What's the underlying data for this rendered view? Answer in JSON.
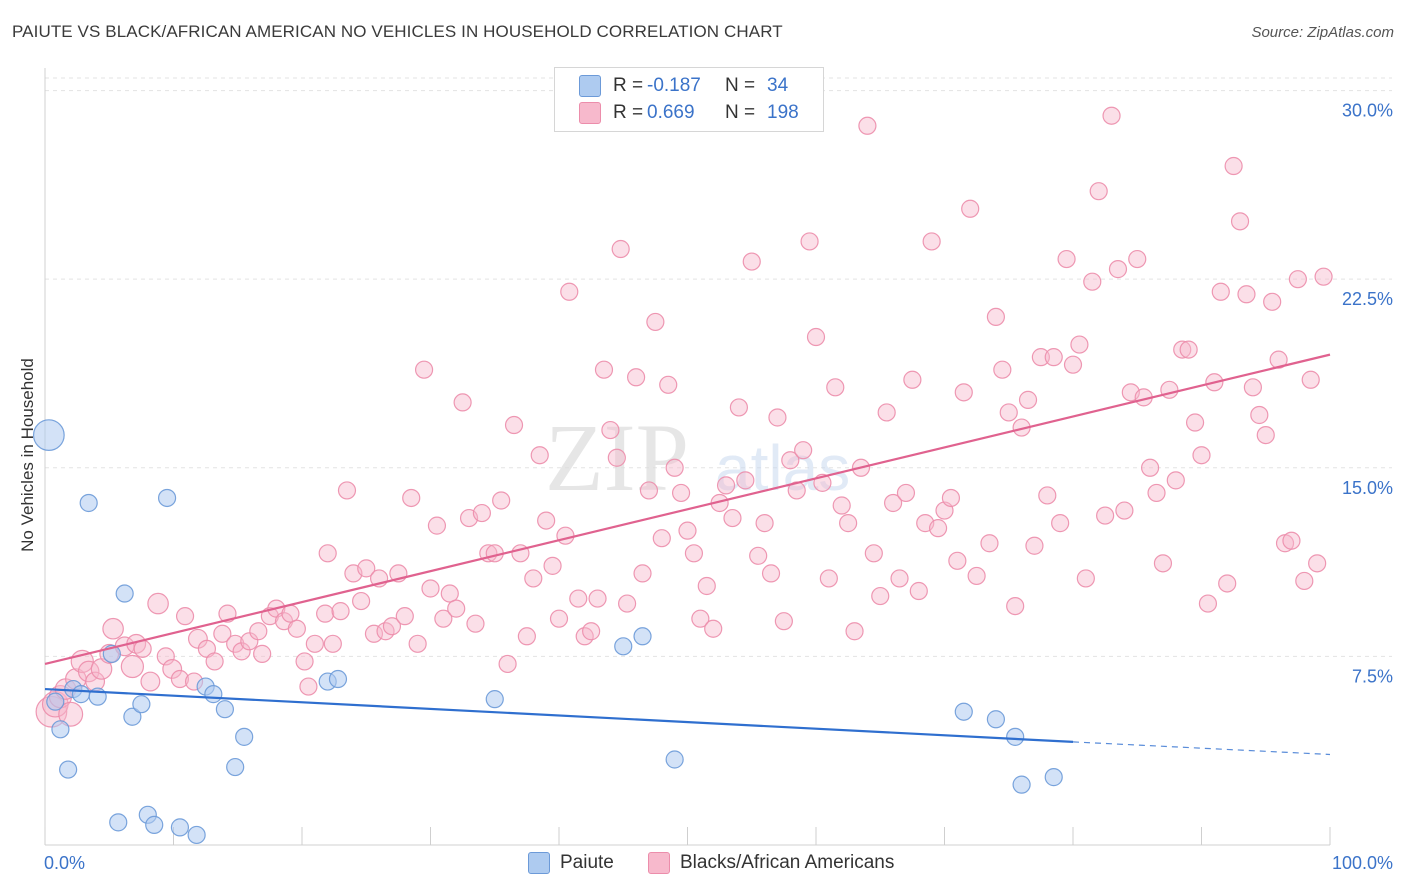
{
  "header": {
    "title": "PAIUTE VS BLACK/AFRICAN AMERICAN NO VEHICLES IN HOUSEHOLD CORRELATION CHART",
    "source": "Source: ZipAtlas.com"
  },
  "legend": {
    "rows": [
      {
        "r_label": "R =",
        "r_value": "-0.187",
        "n_label": "N =",
        "n_value": "34",
        "color": "#aecbf0"
      },
      {
        "r_label": "R =",
        "r_value": "0.669",
        "n_label": "N =",
        "n_value": "198",
        "color": "#f7b9cc"
      }
    ]
  },
  "watermark": {
    "zip": "ZIP",
    "atlas": "atlas"
  },
  "colors": {
    "blue": "#aecbf0",
    "blue_stroke": "#6c9ad8",
    "blue_line": "#2f6fcf",
    "pink": "#f7b9cc",
    "pink_stroke": "#ec8dab",
    "pink_line": "#e0628f",
    "axis_text": "#3b73c9",
    "grid": "#e3e3e3"
  },
  "chart_data": {
    "type": "scatter",
    "title": "PAIUTE VS BLACK/AFRICAN AMERICAN NO VEHICLES IN HOUSEHOLD CORRELATION CHART",
    "xlabel": "",
    "ylabel": "No Vehicles in Household",
    "xlim": [
      0,
      100
    ],
    "ylim": [
      0,
      30.5
    ],
    "x_tick_labels": [
      "0.0%",
      "100.0%"
    ],
    "y_ticks": [
      7.5,
      15.0,
      22.5,
      30.0
    ],
    "y_tick_labels": [
      "7.5%",
      "15.0%",
      "22.5%",
      "30.0%"
    ],
    "grid": true,
    "legend_position": "bottom",
    "series": [
      {
        "name": "Paiute",
        "r": -0.187,
        "n": 34,
        "trend": {
          "x0": 0,
          "y0": 6.2,
          "x1": 80,
          "y1": 4.1,
          "dash_x1": 100,
          "dash_y1": 3.6
        },
        "points": [
          [
            0.3,
            16.3,
            1.8
          ],
          [
            0.8,
            5.7,
            1
          ],
          [
            1.2,
            4.6,
            1
          ],
          [
            1.8,
            3.0,
            1
          ],
          [
            2.2,
            6.2,
            1
          ],
          [
            2.8,
            6.0,
            1
          ],
          [
            3.4,
            13.6,
            1
          ],
          [
            4.1,
            5.9,
            1
          ],
          [
            5.2,
            7.6,
            1
          ],
          [
            5.7,
            0.9,
            1
          ],
          [
            6.2,
            10.0,
            1
          ],
          [
            6.8,
            5.1,
            1
          ],
          [
            7.5,
            5.6,
            1
          ],
          [
            8.0,
            1.2,
            1
          ],
          [
            8.5,
            0.8,
            1
          ],
          [
            9.5,
            13.8,
            1
          ],
          [
            10.5,
            0.7,
            1
          ],
          [
            11.8,
            0.4,
            1
          ],
          [
            12.5,
            6.3,
            1
          ],
          [
            13.1,
            6.0,
            1
          ],
          [
            14.0,
            5.4,
            1
          ],
          [
            14.8,
            3.1,
            1
          ],
          [
            15.5,
            4.3,
            1
          ],
          [
            22.0,
            6.5,
            1
          ],
          [
            22.8,
            6.6,
            1
          ],
          [
            35.0,
            5.8,
            1
          ],
          [
            45.0,
            7.9,
            1
          ],
          [
            46.5,
            8.3,
            1
          ],
          [
            49.0,
            3.4,
            1
          ],
          [
            71.5,
            5.3,
            1
          ],
          [
            74.0,
            5.0,
            1
          ],
          [
            75.5,
            4.3,
            1
          ],
          [
            76.0,
            2.4,
            1
          ],
          [
            78.5,
            2.7,
            1
          ]
        ]
      },
      {
        "name": "Blacks/African Americans",
        "r": 0.669,
        "n": 198,
        "trend": {
          "x0": 0,
          "y0": 7.2,
          "x1": 100,
          "y1": 19.5
        },
        "points": [
          [
            0.5,
            5.3,
            1.8
          ],
          [
            0.8,
            5.6,
            1.5
          ],
          [
            1.2,
            5.9,
            1.3
          ],
          [
            1.6,
            6.2,
            1.2
          ],
          [
            2.0,
            5.2,
            1.4
          ],
          [
            2.4,
            6.6,
            1.2
          ],
          [
            2.9,
            7.3,
            1.3
          ],
          [
            3.4,
            6.9,
            1.2
          ],
          [
            3.9,
            6.5,
            1.1
          ],
          [
            4.4,
            7.0,
            1.2
          ],
          [
            5.0,
            7.6,
            1.1
          ],
          [
            5.3,
            8.6,
            1.2
          ],
          [
            6.2,
            7.9,
            1.1
          ],
          [
            6.8,
            7.1,
            1.3
          ],
          [
            7.1,
            8.0,
            1.1
          ],
          [
            7.6,
            7.8,
            1.0
          ],
          [
            8.2,
            6.5,
            1.1
          ],
          [
            8.8,
            9.6,
            1.2
          ],
          [
            9.4,
            7.5,
            1.0
          ],
          [
            9.9,
            7.0,
            1.1
          ],
          [
            10.5,
            6.6,
            1.0
          ],
          [
            10.9,
            9.1,
            1.0
          ],
          [
            11.6,
            6.5,
            1.0
          ],
          [
            11.9,
            8.2,
            1.1
          ],
          [
            12.6,
            7.8,
            1.0
          ],
          [
            13.2,
            7.3,
            1.0
          ],
          [
            13.8,
            8.4,
            1.0
          ],
          [
            14.2,
            9.2,
            1.0
          ],
          [
            14.8,
            8.0,
            1.0
          ],
          [
            15.3,
            7.7,
            1.0
          ],
          [
            15.9,
            8.1,
            1.0
          ],
          [
            16.6,
            8.5,
            1.0
          ],
          [
            16.9,
            7.6,
            1.0
          ],
          [
            17.5,
            9.1,
            1.0
          ],
          [
            18.0,
            9.4,
            1.0
          ],
          [
            18.6,
            8.9,
            1.0
          ],
          [
            19.1,
            9.2,
            1.0
          ],
          [
            19.6,
            8.6,
            1.0
          ],
          [
            20.2,
            7.3,
            1.0
          ],
          [
            20.5,
            6.3,
            1.0
          ],
          [
            21.0,
            8.0,
            1.0
          ],
          [
            21.8,
            9.2,
            1.0
          ],
          [
            22.4,
            8.0,
            1.0
          ],
          [
            22.0,
            11.6,
            1.0
          ],
          [
            23.0,
            9.3,
            1.0
          ],
          [
            23.5,
            14.1,
            1.0
          ],
          [
            24.0,
            10.8,
            1.0
          ],
          [
            24.6,
            9.7,
            1.0
          ],
          [
            25.0,
            11.0,
            1.0
          ],
          [
            25.6,
            8.4,
            1.0
          ],
          [
            26.0,
            10.6,
            1.0
          ],
          [
            26.5,
            8.5,
            1.0
          ],
          [
            27.0,
            8.7,
            1.0
          ],
          [
            27.5,
            10.8,
            1.0
          ],
          [
            28.0,
            9.1,
            1.0
          ],
          [
            28.5,
            13.8,
            1.0
          ],
          [
            29.0,
            8.0,
            1.0
          ],
          [
            29.5,
            18.9,
            1.0
          ],
          [
            30.0,
            10.2,
            1.0
          ],
          [
            30.5,
            12.7,
            1.0
          ],
          [
            31.0,
            9.0,
            1.0
          ],
          [
            31.5,
            10.0,
            1.0
          ],
          [
            32.0,
            9.4,
            1.0
          ],
          [
            32.5,
            17.6,
            1.0
          ],
          [
            33.0,
            13.0,
            1.0
          ],
          [
            33.5,
            8.8,
            1.0
          ],
          [
            34.0,
            13.2,
            1.0
          ],
          [
            34.5,
            11.6,
            1.0
          ],
          [
            35.0,
            11.6,
            1.0
          ],
          [
            35.5,
            13.7,
            1.0
          ],
          [
            36.0,
            7.2,
            1.0
          ],
          [
            36.5,
            16.7,
            1.0
          ],
          [
            37.0,
            11.6,
            1.0
          ],
          [
            37.5,
            8.3,
            1.0
          ],
          [
            38.0,
            10.6,
            1.0
          ],
          [
            38.5,
            15.5,
            1.0
          ],
          [
            39.0,
            12.9,
            1.0
          ],
          [
            39.5,
            11.1,
            1.0
          ],
          [
            40.0,
            9.0,
            1.0
          ],
          [
            40.5,
            12.3,
            1.0
          ],
          [
            40.8,
            22.0,
            1.0
          ],
          [
            41.5,
            9.8,
            1.0
          ],
          [
            42.0,
            8.3,
            1.0
          ],
          [
            42.5,
            8.5,
            1.0
          ],
          [
            43.0,
            9.8,
            1.0
          ],
          [
            43.5,
            18.9,
            1.0
          ],
          [
            44.0,
            16.5,
            1.0
          ],
          [
            44.5,
            15.4,
            1.0
          ],
          [
            44.8,
            23.7,
            1.0
          ],
          [
            45.3,
            9.6,
            1.0
          ],
          [
            46.0,
            18.6,
            1.0
          ],
          [
            46.5,
            10.8,
            1.0
          ],
          [
            47.0,
            14.1,
            1.0
          ],
          [
            47.5,
            20.8,
            1.0
          ],
          [
            48.0,
            12.2,
            1.0
          ],
          [
            48.5,
            18.3,
            1.0
          ],
          [
            49.0,
            15.0,
            1.0
          ],
          [
            49.5,
            14.0,
            1.0
          ],
          [
            50.0,
            12.5,
            1.0
          ],
          [
            50.5,
            11.6,
            1.0
          ],
          [
            51.0,
            9.0,
            1.0
          ],
          [
            51.5,
            10.3,
            1.0
          ],
          [
            52.0,
            8.6,
            1.0
          ],
          [
            52.5,
            13.6,
            1.0
          ],
          [
            53.0,
            14.3,
            1.0
          ],
          [
            53.5,
            13.0,
            1.0
          ],
          [
            54.0,
            17.4,
            1.0
          ],
          [
            54.5,
            14.5,
            1.0
          ],
          [
            55.0,
            23.2,
            1.0
          ],
          [
            55.5,
            11.5,
            1.0
          ],
          [
            56.0,
            12.8,
            1.0
          ],
          [
            56.5,
            10.8,
            1.0
          ],
          [
            57.0,
            17.0,
            1.0
          ],
          [
            57.5,
            8.9,
            1.0
          ],
          [
            58.0,
            15.3,
            1.0
          ],
          [
            58.5,
            14.1,
            1.0
          ],
          [
            59.0,
            15.7,
            1.0
          ],
          [
            59.5,
            24.0,
            1.0
          ],
          [
            60.0,
            20.2,
            1.0
          ],
          [
            60.5,
            14.4,
            1.0
          ],
          [
            61.0,
            10.6,
            1.0
          ],
          [
            61.5,
            18.2,
            1.0
          ],
          [
            62.0,
            13.5,
            1.0
          ],
          [
            62.5,
            12.8,
            1.0
          ],
          [
            63.0,
            8.5,
            1.0
          ],
          [
            63.5,
            15.0,
            1.0
          ],
          [
            64.0,
            28.6,
            1.0
          ],
          [
            64.5,
            11.6,
            1.0
          ],
          [
            65.0,
            9.9,
            1.0
          ],
          [
            65.5,
            17.2,
            1.0
          ],
          [
            66.0,
            13.6,
            1.0
          ],
          [
            66.5,
            10.6,
            1.0
          ],
          [
            67.0,
            14.0,
            1.0
          ],
          [
            67.5,
            18.5,
            1.0
          ],
          [
            68.0,
            10.1,
            1.0
          ],
          [
            68.5,
            12.8,
            1.0
          ],
          [
            69.0,
            24.0,
            1.0
          ],
          [
            69.5,
            12.6,
            1.0
          ],
          [
            70.0,
            13.3,
            1.0
          ],
          [
            70.5,
            13.8,
            1.0
          ],
          [
            71.0,
            11.3,
            1.0
          ],
          [
            71.5,
            18.0,
            1.0
          ],
          [
            72.0,
            25.3,
            1.0
          ],
          [
            72.5,
            10.7,
            1.0
          ],
          [
            73.5,
            12.0,
            1.0
          ],
          [
            74.0,
            21.0,
            1.0
          ],
          [
            74.5,
            18.9,
            1.0
          ],
          [
            75.0,
            17.2,
            1.0
          ],
          [
            75.5,
            9.5,
            1.0
          ],
          [
            76.0,
            16.6,
            1.0
          ],
          [
            76.5,
            17.7,
            1.0
          ],
          [
            77.0,
            11.9,
            1.0
          ],
          [
            77.5,
            19.4,
            1.0
          ],
          [
            78.0,
            13.9,
            1.0
          ],
          [
            78.5,
            19.4,
            1.0
          ],
          [
            79.0,
            12.8,
            1.0
          ],
          [
            79.5,
            23.3,
            1.0
          ],
          [
            80.0,
            19.1,
            1.0
          ],
          [
            80.5,
            19.9,
            1.0
          ],
          [
            81.0,
            10.6,
            1.0
          ],
          [
            81.5,
            22.4,
            1.0
          ],
          [
            82.0,
            26.0,
            1.0
          ],
          [
            82.5,
            13.1,
            1.0
          ],
          [
            83.0,
            29.0,
            1.0
          ],
          [
            83.5,
            22.9,
            1.0
          ],
          [
            84.0,
            13.3,
            1.0
          ],
          [
            84.5,
            18.0,
            1.0
          ],
          [
            85.0,
            23.3,
            1.0
          ],
          [
            85.5,
            17.8,
            1.0
          ],
          [
            86.0,
            15.0,
            1.0
          ],
          [
            86.5,
            14.0,
            1.0
          ],
          [
            87.0,
            11.2,
            1.0
          ],
          [
            87.5,
            18.1,
            1.0
          ],
          [
            88.0,
            14.5,
            1.0
          ],
          [
            88.5,
            19.7,
            1.0
          ],
          [
            89.0,
            19.7,
            1.0
          ],
          [
            89.5,
            16.8,
            1.0
          ],
          [
            90.0,
            15.5,
            1.0
          ],
          [
            90.5,
            9.6,
            1.0
          ],
          [
            91.0,
            18.4,
            1.0
          ],
          [
            91.5,
            22.0,
            1.0
          ],
          [
            92.0,
            10.4,
            1.0
          ],
          [
            92.5,
            27.0,
            1.0
          ],
          [
            93.0,
            24.8,
            1.0
          ],
          [
            93.5,
            21.9,
            1.0
          ],
          [
            94.0,
            18.2,
            1.0
          ],
          [
            94.5,
            17.1,
            1.0
          ],
          [
            95.0,
            16.3,
            1.0
          ],
          [
            95.5,
            21.6,
            1.0
          ],
          [
            96.0,
            19.3,
            1.0
          ],
          [
            96.5,
            12.0,
            1.0
          ],
          [
            97.0,
            12.1,
            1.0
          ],
          [
            97.5,
            22.5,
            1.0
          ],
          [
            98.0,
            10.5,
            1.0
          ],
          [
            98.5,
            18.5,
            1.0
          ],
          [
            99.0,
            11.2,
            1.0
          ],
          [
            99.5,
            22.6,
            1.0
          ]
        ]
      }
    ]
  },
  "bottom_legend": [
    {
      "label": "Paiute",
      "color": "#aecbf0"
    },
    {
      "label": "Blacks/African Americans",
      "color": "#f7b9cc"
    }
  ]
}
